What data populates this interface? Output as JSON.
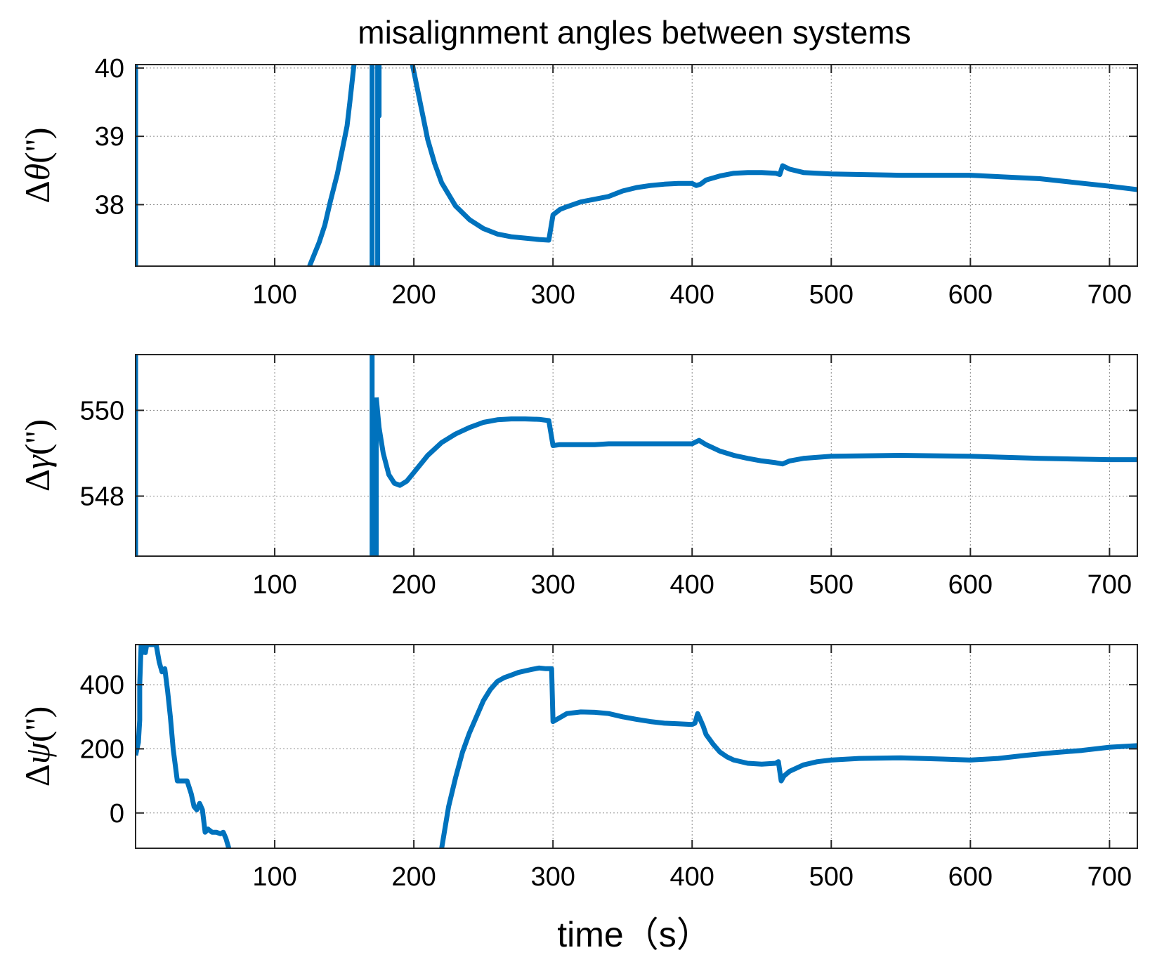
{
  "figure": {
    "title": "misalignment angles between systems",
    "xlabel": "time（s）",
    "line_color": "#0072BD"
  },
  "chart_data": [
    {
      "type": "line",
      "ylabel_prefix": "Δ",
      "ylabel_symbol": "θ",
      "ylabel_suffix": "('')",
      "xlim": [
        0,
        720
      ],
      "ylim": [
        37.1,
        40.05
      ],
      "xticks": [
        100,
        200,
        300,
        400,
        500,
        600,
        700
      ],
      "yticks": [
        38,
        39,
        40
      ],
      "grid": true,
      "series": [
        {
          "name": "theta-spike-start",
          "x": [
            0,
            0,
            0,
            0
          ],
          "y": [
            37.1,
            40.05,
            38.5,
            37.1
          ]
        },
        {
          "name": "theta-rise",
          "x": [
            125,
            128,
            132,
            136,
            140,
            145,
            150,
            152,
            154,
            157
          ],
          "y": [
            37.1,
            37.25,
            37.45,
            37.7,
            38.05,
            38.45,
            38.95,
            39.15,
            39.5,
            40.05
          ]
        },
        {
          "name": "theta-spike-170",
          "x": [
            170,
            170
          ],
          "y": [
            40.05,
            37.1
          ]
        },
        {
          "name": "theta-spike-175",
          "x": [
            174,
            174,
            175,
            175
          ],
          "y": [
            37.1,
            40.05,
            39.3,
            40.05
          ]
        },
        {
          "name": "theta-main",
          "x": [
            199,
            205,
            210,
            215,
            220,
            230,
            240,
            250,
            260,
            270,
            280,
            290,
            297,
            300,
            305,
            310,
            320,
            330,
            340,
            350,
            360,
            370,
            380,
            390,
            400,
            403,
            406,
            410,
            420,
            430,
            440,
            450,
            460,
            463,
            465,
            470,
            480,
            500,
            550,
            600,
            650,
            700,
            720
          ],
          "y": [
            40.05,
            39.45,
            38.95,
            38.6,
            38.32,
            37.98,
            37.78,
            37.65,
            37.57,
            37.53,
            37.51,
            37.49,
            37.48,
            37.85,
            37.93,
            37.97,
            38.04,
            38.08,
            38.12,
            38.2,
            38.25,
            38.28,
            38.3,
            38.31,
            38.31,
            38.28,
            38.3,
            38.36,
            38.42,
            38.46,
            38.47,
            38.47,
            38.46,
            38.44,
            38.57,
            38.52,
            38.47,
            38.45,
            38.43,
            38.43,
            38.38,
            38.27,
            38.22
          ]
        }
      ]
    },
    {
      "type": "line",
      "ylabel_prefix": "Δ",
      "ylabel_symbol": "γ",
      "ylabel_suffix": "('')",
      "xlim": [
        0,
        720
      ],
      "ylim": [
        546.6,
        551.3
      ],
      "xticks": [
        100,
        200,
        300,
        400,
        500,
        600,
        700
      ],
      "yticks": [
        548,
        550
      ],
      "grid": true,
      "series": [
        {
          "name": "gamma-spike-start",
          "x": [
            0,
            0
          ],
          "y": [
            546.6,
            551.3
          ]
        },
        {
          "name": "gamma-spike-170",
          "x": [
            170,
            170
          ],
          "y": [
            551.3,
            546.6
          ]
        },
        {
          "name": "gamma-spike-173",
          "x": [
            173,
            173
          ],
          "y": [
            546.6,
            550.3
          ]
        },
        {
          "name": "gamma-main",
          "x": [
            173,
            175,
            178,
            182,
            186,
            190,
            195,
            200,
            210,
            220,
            230,
            240,
            250,
            260,
            270,
            280,
            290,
            297,
            300,
            305,
            310,
            320,
            330,
            340,
            350,
            360,
            380,
            400,
            405,
            410,
            420,
            430,
            440,
            450,
            460,
            465,
            470,
            480,
            500,
            550,
            600,
            650,
            700,
            720
          ],
          "y": [
            550.3,
            549.6,
            549.0,
            548.5,
            548.3,
            548.25,
            548.35,
            548.55,
            548.95,
            549.25,
            549.45,
            549.6,
            549.72,
            549.78,
            549.8,
            549.8,
            549.79,
            549.76,
            549.18,
            549.2,
            549.2,
            549.2,
            549.2,
            549.22,
            549.22,
            549.22,
            549.22,
            549.22,
            549.3,
            549.2,
            549.05,
            548.95,
            548.88,
            548.82,
            548.78,
            548.75,
            548.82,
            548.88,
            548.93,
            548.95,
            548.93,
            548.88,
            548.85,
            548.85
          ]
        }
      ]
    },
    {
      "type": "line",
      "ylabel_prefix": "Δ",
      "ylabel_symbol": "ψ",
      "ylabel_suffix": "('')",
      "xlim": [
        0,
        720
      ],
      "ylim": [
        -110,
        525
      ],
      "xticks": [
        100,
        200,
        300,
        400,
        500,
        600,
        700
      ],
      "yticks": [
        0,
        200,
        400
      ],
      "grid": true,
      "series": [
        {
          "name": "psi-early",
          "x": [
            0,
            1,
            2,
            3,
            3,
            4,
            5,
            6,
            7,
            8,
            10,
            12,
            14,
            15,
            17,
            19,
            21,
            23,
            25,
            27,
            30,
            33,
            35,
            37,
            40,
            42,
            44,
            46,
            48,
            50,
            52,
            55,
            58,
            61,
            63,
            65,
            67
          ],
          "y": [
            180,
            200,
            220,
            290,
            400,
            525,
            500,
            525,
            500,
            525,
            525,
            525,
            525,
            520,
            470,
            440,
            450,
            380,
            300,
            200,
            100,
            100,
            100,
            100,
            60,
            20,
            10,
            30,
            10,
            -60,
            -50,
            -60,
            -60,
            -65,
            -60,
            -80,
            -110
          ]
        },
        {
          "name": "psi-main",
          "x": [
            220,
            225,
            230,
            235,
            240,
            250,
            255,
            260,
            265,
            270,
            275,
            280,
            285,
            290,
            295,
            297,
            299,
            300,
            310,
            320,
            330,
            340,
            350,
            360,
            370,
            380,
            390,
            400,
            402,
            404,
            406,
            408,
            410,
            415,
            420,
            425,
            430,
            440,
            450,
            460,
            462,
            464,
            466,
            470,
            480,
            490,
            500,
            520,
            550,
            580,
            600,
            620,
            640,
            660,
            680,
            700,
            720
          ],
          "y": [
            -110,
            20,
            110,
            190,
            250,
            350,
            385,
            410,
            422,
            430,
            438,
            443,
            448,
            452,
            450,
            450,
            450,
            285,
            310,
            315,
            314,
            310,
            300,
            292,
            285,
            280,
            278,
            276,
            280,
            310,
            290,
            270,
            245,
            215,
            190,
            175,
            165,
            155,
            152,
            155,
            160,
            100,
            115,
            130,
            150,
            160,
            165,
            170,
            172,
            168,
            165,
            170,
            180,
            188,
            195,
            205,
            210
          ]
        }
      ]
    }
  ]
}
